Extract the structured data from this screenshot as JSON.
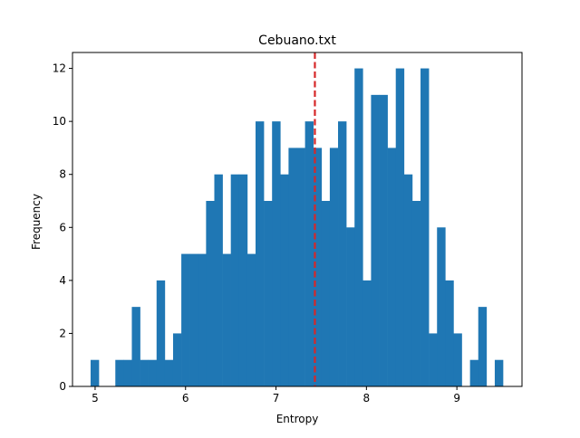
{
  "chart_data": {
    "type": "bar",
    "title": "Cebuano.txt",
    "xlabel": "Entropy",
    "ylabel": "Frequency",
    "xlim": [
      4.75,
      9.72
    ],
    "ylim": [
      0,
      12.6
    ],
    "xticks": [
      5,
      6,
      7,
      8,
      9
    ],
    "yticks": [
      0,
      2,
      4,
      6,
      8,
      10,
      12
    ],
    "grid": false,
    "bin_start": 4.95,
    "bin_width": 0.0912,
    "counts": [
      1,
      0,
      0,
      1,
      1,
      3,
      1,
      1,
      4,
      1,
      2,
      5,
      5,
      5,
      7,
      8,
      5,
      8,
      8,
      5,
      10,
      7,
      10,
      8,
      9,
      9,
      10,
      9,
      7,
      9,
      10,
      6,
      12,
      4,
      11,
      11,
      9,
      12,
      8,
      7,
      12,
      2,
      6,
      4,
      2,
      0,
      1,
      3,
      0,
      1
    ],
    "mean_line": {
      "x": 7.43,
      "color": "#d62728",
      "style": "dashed"
    },
    "bar_color": "#1f77b4"
  }
}
